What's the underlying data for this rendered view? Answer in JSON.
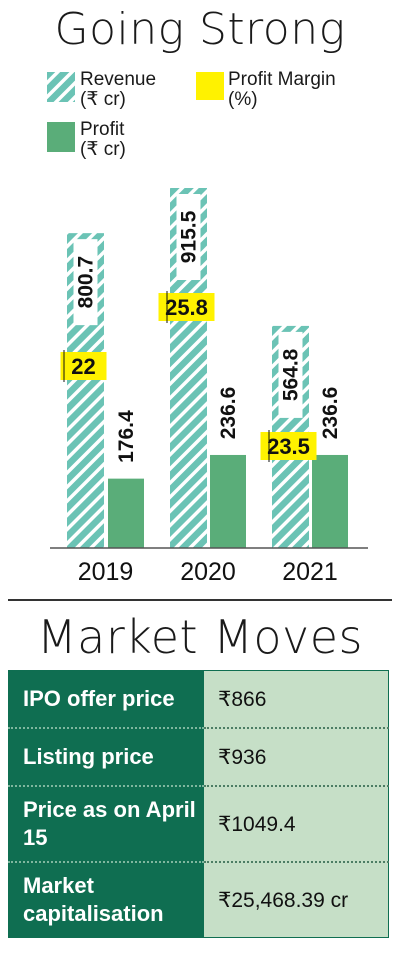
{
  "title": "Going Strong",
  "legend": {
    "revenue": [
      "Revenue",
      "(₹ cr)"
    ],
    "profit": [
      "Profit",
      "(₹ cr)"
    ],
    "margin": [
      "Profit Margin",
      "(%)"
    ]
  },
  "colors": {
    "revenue": "#6bc3b5",
    "stripe": "#ffffff",
    "profit": "#5aad79",
    "margin": "#fff200",
    "table_key": "#0f6e51",
    "table_value": "#c6dfc7"
  },
  "chart_data": {
    "type": "bar",
    "categories": [
      "2019",
      "2020",
      "2021"
    ],
    "series": [
      {
        "name": "Revenue (₹ cr)",
        "values": [
          800.7,
          915.5,
          564.8
        ],
        "labels": [
          "800.7",
          "915.5",
          "564.8"
        ]
      },
      {
        "name": "Profit (₹ cr)",
        "values": [
          176.4,
          236.6,
          236.6
        ],
        "labels": [
          "176.4",
          "236.6",
          "236.6"
        ]
      },
      {
        "name": "Profit Margin (%)",
        "values": [
          22,
          25.8,
          23.5
        ],
        "labels": [
          "22",
          "25.8",
          "23.5"
        ]
      }
    ],
    "legend": "top",
    "grid": false
  },
  "market": {
    "title": "Market Moves",
    "rows": [
      {
        "key": "IPO offer price",
        "value": "₹866"
      },
      {
        "key": "Listing price",
        "value": "₹936"
      },
      {
        "key": "Price as on April 15",
        "value": "₹1049.4"
      },
      {
        "key": "Market capitalisation",
        "value": "₹25,468.39 cr"
      }
    ]
  }
}
